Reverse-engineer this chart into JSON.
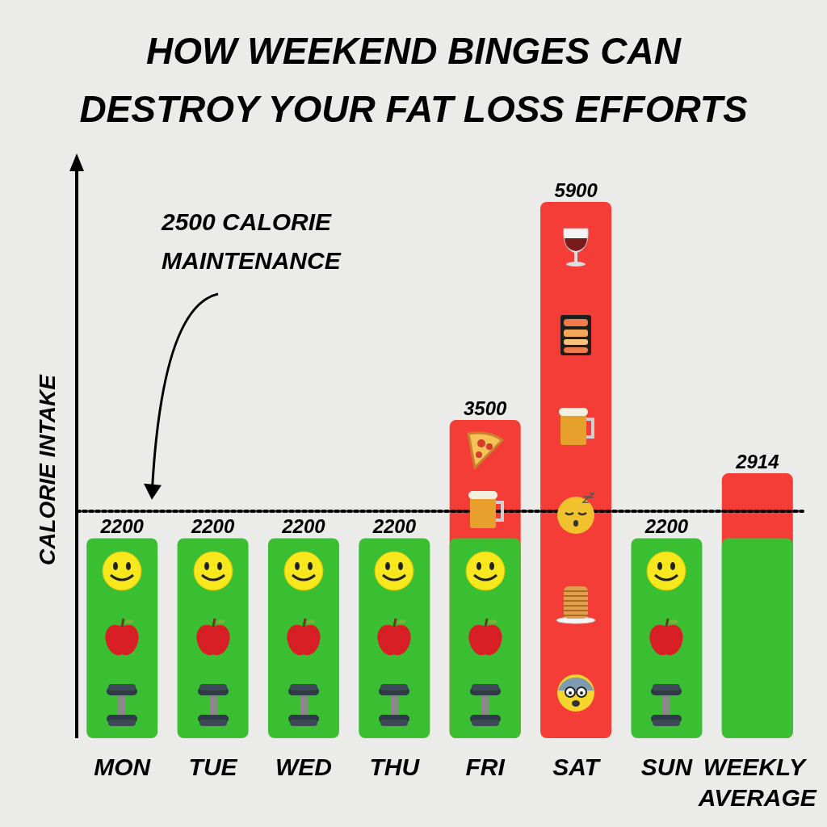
{
  "chart_data": {
    "type": "bar",
    "title": "HOW WEEKEND BINGES CAN DESTROY YOUR FAT LOSS EFFORTS",
    "ylabel": "CALORIE INTAKE",
    "categories": [
      "MON",
      "TUE",
      "WED",
      "THU",
      "FRI",
      "SAT",
      "SUN",
      "WEEKLY AVERAGE"
    ],
    "series": [
      {
        "colors": [
          "#3bbf32",
          "#3bbf32",
          "#3bbf32",
          "#3bbf32",
          "#f43d37",
          "#f43d37",
          "#3bbf32",
          "#f43d37"
        ],
        "values": [
          2200,
          2200,
          2200,
          2200,
          3500,
          5900,
          2200,
          2914
        ],
        "value_labels": [
          "2200",
          "2200",
          "2200",
          "2200",
          "3500",
          "5900",
          "2200",
          "2914"
        ]
      },
      {
        "color": "#3bbf32",
        "values": [
          null,
          null,
          null,
          null,
          2200,
          null,
          null,
          2200
        ],
        "value_labels": [
          null,
          null,
          null,
          null,
          null,
          null,
          null,
          null
        ]
      }
    ],
    "ref_lines": [
      {
        "axis": "y",
        "value": 2500,
        "label": "2500 CALORIE MAINTENANCE",
        "color": "#000000",
        "line_style": "dotted"
      }
    ],
    "tick_labels": "x"
  }
}
